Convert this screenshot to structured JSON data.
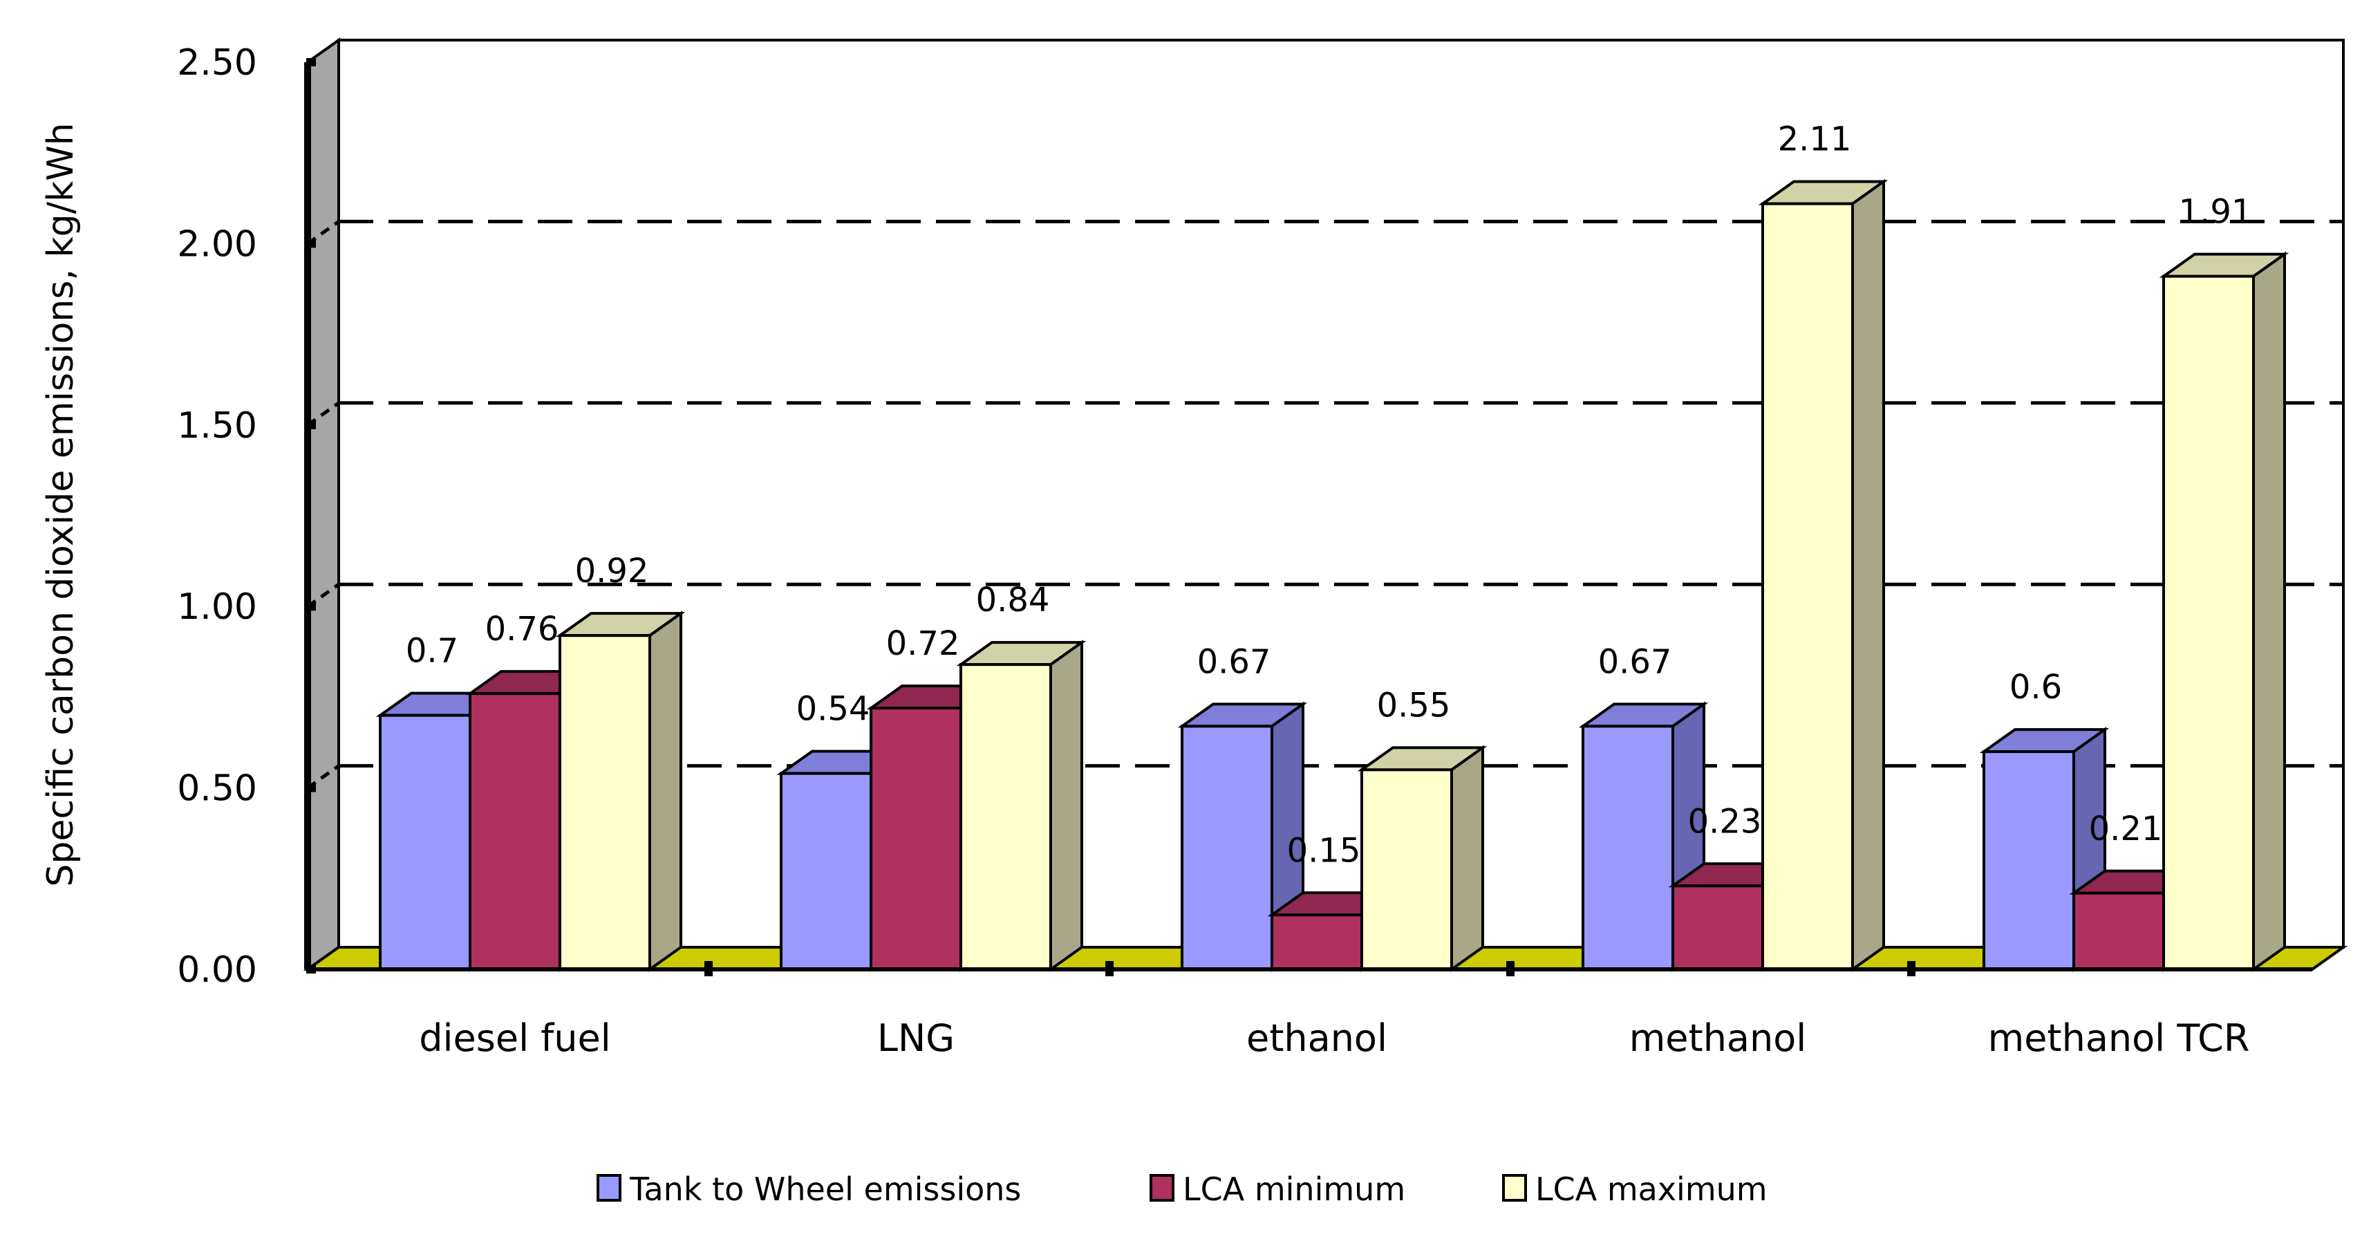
{
  "chart_data": {
    "type": "bar",
    "title": "",
    "xlabel": "",
    "ylabel": "Specific carbon dioxide emissions, kg/kWh",
    "ylim": [
      0,
      2.5
    ],
    "yticks": [
      "0.00",
      "0.50",
      "1.00",
      "1.50",
      "2.00",
      "2.50"
    ],
    "categories": [
      "diesel fuel",
      "LNG",
      "ethanol",
      "methanol",
      "methanol TCR"
    ],
    "series": [
      {
        "name": "Tank to Wheel emissions",
        "values": [
          0.7,
          0.54,
          0.67,
          0.67,
          0.6
        ],
        "labels": [
          "0.7",
          "0.54",
          "0.67",
          "0.67",
          "0.6"
        ],
        "color": "#9999ff",
        "side": "#6666b3",
        "top": "#7f7fd9"
      },
      {
        "name": "LCA minimum",
        "values": [
          0.76,
          0.72,
          0.15,
          0.23,
          0.21
        ],
        "labels": [
          "0.76",
          "0.72",
          "0.15",
          "0.23",
          "0.21"
        ],
        "color": "#b03060",
        "side": "#7a2043",
        "top": "#8f2750"
      },
      {
        "name": "LCA maximum",
        "values": [
          0.92,
          0.84,
          0.55,
          2.11,
          1.91
        ],
        "labels": [
          "0.92",
          "0.84",
          "0.55",
          "2.11",
          "1.91"
        ],
        "color": "#ffffcc",
        "side": "#a8a888",
        "top": "#d2d2a8"
      }
    ],
    "grid": true,
    "legend": "bottom"
  }
}
